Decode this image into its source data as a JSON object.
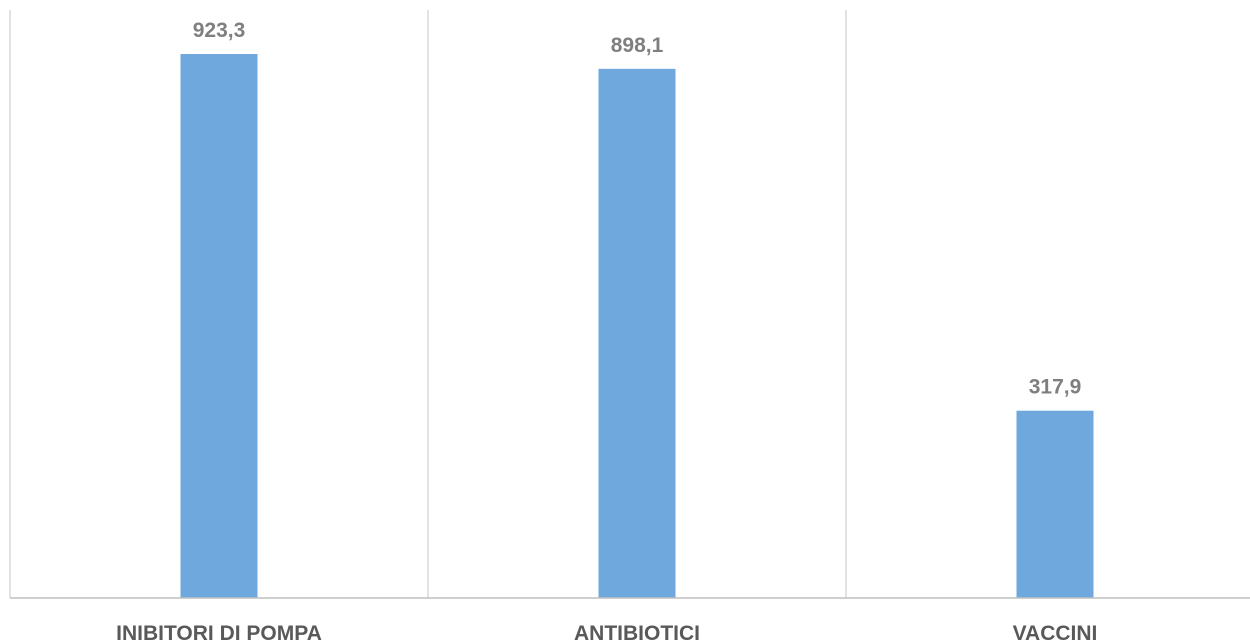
{
  "chart_data": {
    "type": "bar",
    "categories": [
      "INIBITORI DI POMPA",
      "ANTIBIOTICI",
      "VACCINI"
    ],
    "values": [
      923.3,
      898.1,
      317.9
    ],
    "value_labels": [
      "923,3",
      "898,1",
      "317,9"
    ],
    "title": "",
    "xlabel": "",
    "ylabel": "",
    "ylim": [
      0,
      1000
    ],
    "grid": "vertical category separators",
    "legend": "none",
    "colors": {
      "bar": "#6fa8dc",
      "separator": "#d9d9d9",
      "axis": "#bfbfbf",
      "value_label": "#7f7f7f",
      "category_label": "#595959"
    }
  }
}
